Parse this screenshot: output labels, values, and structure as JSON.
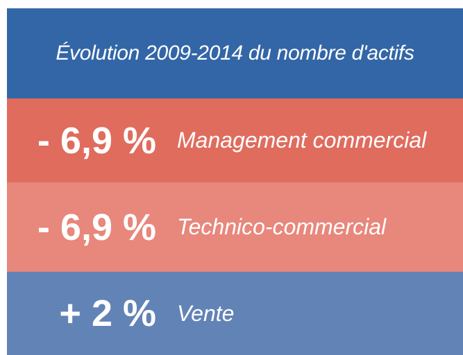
{
  "header": {
    "title": "Évolution 2009-2014 du nombre d'actifs"
  },
  "rows": [
    {
      "value": "- 6,9 %",
      "label": "Management commercial"
    },
    {
      "value": "- 6,9 %",
      "label": "Technico-commercial"
    },
    {
      "value": "+ 2 %",
      "label": "Vente"
    }
  ]
}
